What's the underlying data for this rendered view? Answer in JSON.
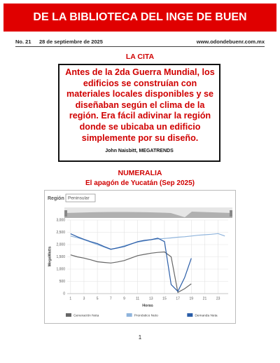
{
  "header": {
    "title": "DE LA BIBLIOTECA DEL INGE DE BUEN",
    "number": "No. 21",
    "date": "28 de septiembre de 2025",
    "website": "www.odondebuenr.com.mx"
  },
  "quote_section": {
    "heading": "LA CITA",
    "text": "Antes de la 2da Guerra Mundial, los edificios se construían con materiales locales disponibles y se diseñaban según el clima de la región. Era fácil adivinar la región donde se ubicaba un edificio simplemente por su diseño.",
    "author": "John Naisbitt, MEGATRENDS"
  },
  "numeralia": {
    "heading": "NUMERALIA",
    "subtitle": "El apagón de Yucatán (Sep 2025)",
    "region_label": "Región",
    "region_value": "Peninsular"
  },
  "chart_data": {
    "type": "line",
    "x_label": "Horas",
    "y_label": "MegaWatts",
    "x": [
      1,
      2,
      3,
      4,
      5,
      6,
      7,
      8,
      9,
      10,
      11,
      12,
      13,
      14,
      15,
      16,
      17,
      18,
      19,
      20,
      21,
      22,
      23,
      24
    ],
    "xlim": [
      0.5,
      24.5
    ],
    "xticks": [
      1,
      3,
      5,
      7,
      9,
      11,
      13,
      15,
      17,
      19,
      21,
      23
    ],
    "ylim": [
      0,
      3000
    ],
    "yticks": [
      0,
      500,
      {
        "value": 1000,
        "label": "1,000"
      },
      {
        "value": 1500,
        "label": "1,500"
      },
      {
        "value": 2000,
        "label": "2,000"
      },
      {
        "value": 2500,
        "label": "2,500"
      },
      {
        "value": 3000,
        "label": "3,000"
      }
    ],
    "grid": true,
    "series": [
      {
        "name": "Generación Neta",
        "color": "#666666",
        "values": [
          1580,
          1500,
          1450,
          1380,
          1300,
          1270,
          1250,
          1290,
          1350,
          1450,
          1550,
          1600,
          1650,
          1680,
          1700,
          1500,
          50,
          200,
          400,
          null,
          null,
          null,
          null,
          null
        ]
      },
      {
        "name": "Pronóstico Neto",
        "color": "#8fb4dc",
        "values": [
          2350,
          2280,
          2200,
          2100,
          2000,
          1900,
          1800,
          1870,
          1950,
          2030,
          2100,
          2150,
          2200,
          2230,
          2250,
          2270,
          2300,
          2320,
          2350,
          2380,
          2400,
          2420,
          2450,
          2350
        ]
      },
      {
        "name": "Demanda Neta",
        "color": "#2a5da8",
        "values": [
          2440,
          2320,
          2210,
          2120,
          2040,
          1920,
          1810,
          1860,
          1920,
          2020,
          2120,
          2170,
          2200,
          2260,
          2120,
          370,
          90,
          650,
          1440,
          null,
          null,
          null,
          null,
          null
        ]
      }
    ]
  },
  "page_number": "1"
}
